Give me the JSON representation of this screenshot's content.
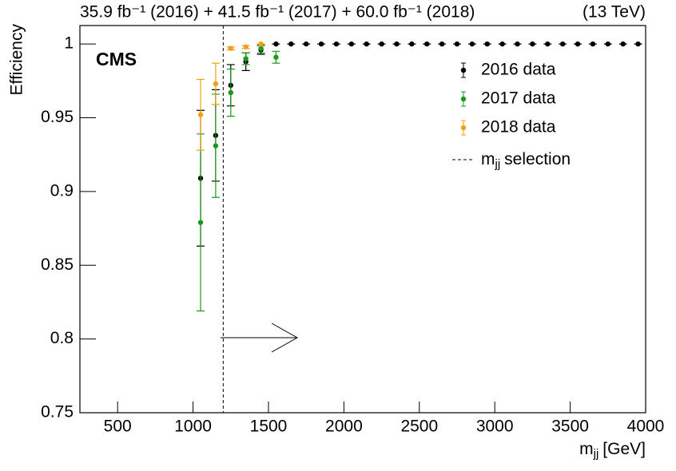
{
  "chart_data": {
    "type": "errorbar",
    "title_left": "35.9 fb⁻¹ (2016) + 41.5 fb⁻¹ (2017) + 60.0 fb⁻¹ (2018)",
    "title_right": "(13 TeV)",
    "annotation": "CMS",
    "ylabel": "Efficiency",
    "xlabel": {
      "main": "m",
      "sub": "jj",
      "rest": "[GeV]"
    },
    "xlim": [
      250,
      4000
    ],
    "ylim": [
      0.75,
      1.0125
    ],
    "xticks": [
      500,
      1000,
      1500,
      2000,
      2500,
      3000,
      3500,
      4000
    ],
    "yticks": [
      0.75,
      0.8,
      0.85,
      0.9,
      0.95,
      1
    ],
    "selection": {
      "value": 1200,
      "color": "#000000",
      "label_main": "m",
      "label_sub": "jj",
      "label_rest": "selection"
    },
    "series": [
      {
        "name": "2016 data",
        "color": "#000000",
        "x": [
          1050,
          1150,
          1250,
          1350,
          1450,
          1550,
          1650,
          1750,
          1850,
          1950,
          2050,
          2150,
          2250,
          2350,
          2450,
          2550,
          2650,
          2750,
          2850,
          2950,
          3050,
          3150,
          3250,
          3350,
          3450,
          3550,
          3650,
          3750,
          3850,
          3950
        ],
        "values": [
          0.909,
          0.938,
          0.972,
          0.988,
          0.996,
          1,
          1,
          1,
          1,
          1,
          1,
          1,
          1,
          1,
          1,
          1,
          1,
          1,
          1,
          1,
          1,
          1,
          1,
          1,
          1,
          1,
          1,
          1,
          1,
          1
        ],
        "errors": [
          0.046,
          0.031,
          0.014,
          0.006,
          0.003,
          0,
          0,
          0,
          0,
          0,
          0,
          0,
          0,
          0,
          0,
          0,
          0,
          0,
          0,
          0,
          0,
          0,
          0,
          0,
          0,
          0,
          0,
          0,
          0,
          0
        ]
      },
      {
        "name": "2017 data",
        "color": "#1a9a1a",
        "x": [
          1050,
          1150,
          1250,
          1350,
          1450,
          1550
        ],
        "values": [
          0.879,
          0.931,
          0.967,
          0.99,
          0.997,
          0.991
        ],
        "errors": [
          0.06,
          0.035,
          0.016,
          0.004,
          0.003,
          0.004
        ]
      },
      {
        "name": "2018 data",
        "color": "#f0a010",
        "x": [
          1050,
          1150,
          1250,
          1350,
          1450
        ],
        "values": [
          0.952,
          0.973,
          0.997,
          0.998,
          1
        ],
        "errors": [
          0.024,
          0.014,
          0.001,
          0.001,
          0
        ]
      }
    ]
  }
}
